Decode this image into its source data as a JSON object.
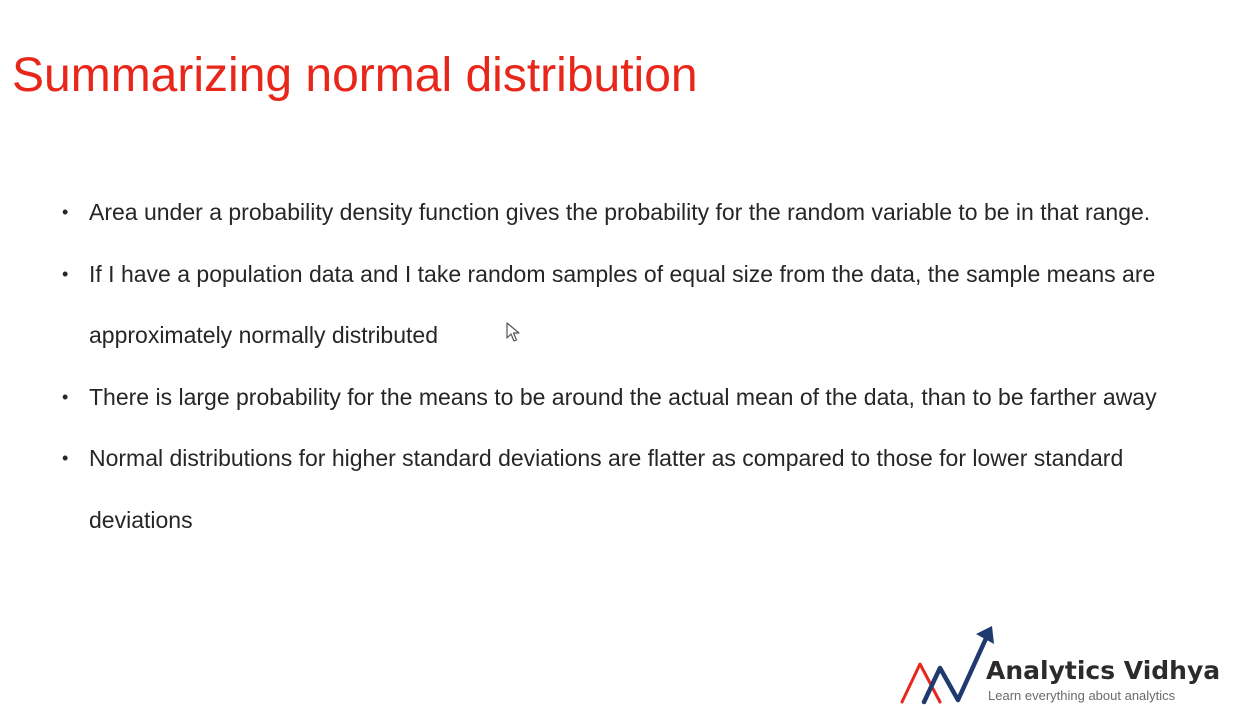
{
  "slide": {
    "title": "Summarizing normal distribution",
    "bullets": [
      "Area under a probability density function gives the probability for the random variable to be in that range.",
      "If I have a population data and I take random samples of equal size from the data, the sample means are approximately normally distributed",
      "There is large probability for the means to be around the actual mean of the data, than to be farther away",
      "Normal distributions for higher standard deviations are flatter as compared to those for lower standard deviations"
    ],
    "bullet_symbol": "•"
  },
  "logo": {
    "name": "Analytics Vidhya",
    "tagline": "Learn everything about analytics",
    "icon": "analytics-vidhya-logo-icon"
  },
  "colors": {
    "title": "#e8261a",
    "text": "#262626",
    "logo_red": "#e8261a",
    "logo_navy": "#1f3a6e"
  }
}
